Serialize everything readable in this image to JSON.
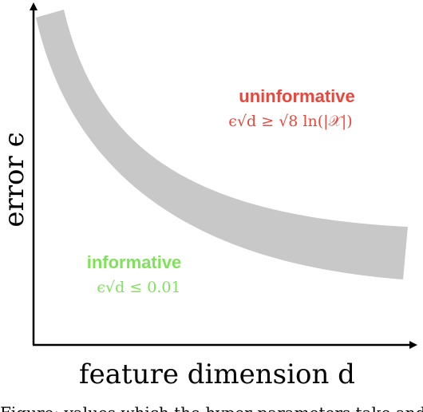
{
  "axes": {
    "x_label": "feature dimension d",
    "y_label": "error ϵ"
  },
  "regions": {
    "uninformative": {
      "title": "uninformative",
      "formula": "ϵ√d ≥ √8 ln(|𝒳|)",
      "color": "#e8473c"
    },
    "informative": {
      "title": "informative",
      "formula": "ϵ√d ≤ 0.01",
      "color": "#7fe25a"
    }
  },
  "band": {
    "color": "#c8c8c8"
  },
  "caption": "Figure: values which the hyper-parameters take and"
}
